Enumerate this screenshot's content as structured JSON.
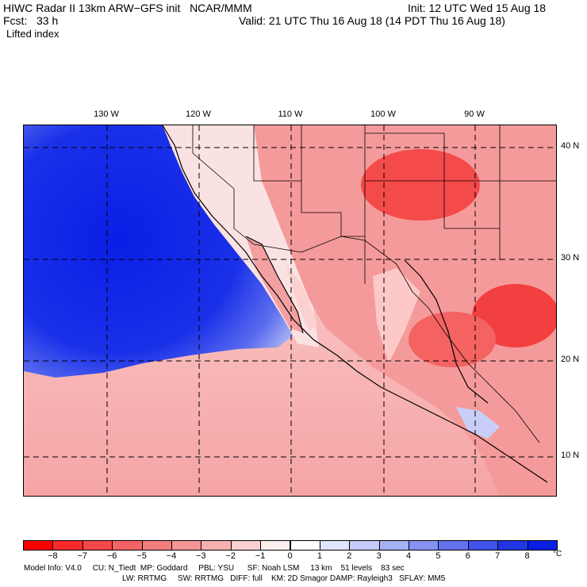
{
  "header": {
    "left_line1": "HIWC Radar II 13km ARW−GFS init   NCAR/MMM",
    "left_line2": "Fcst:   33 h",
    "field": "Lifted index",
    "init": "Init: 12 UTC Wed 15 Aug 18",
    "valid": "Valid: 21 UTC Thu 16 Aug 18 (14 PDT Thu 16 Aug 18)"
  },
  "map": {
    "lon_labels": [
      "130 W",
      "120 W",
      "110 W",
      "100 W",
      "90 W"
    ],
    "lat_labels": [
      "40 N",
      "30 N",
      "20 N",
      "10 N"
    ],
    "ocean_color": "#0a1ee6",
    "land_color": "#f08888"
  },
  "colorbar": {
    "labels": [
      "−8",
      "−7",
      "−6",
      "−5",
      "−4",
      "−3",
      "−2",
      "−1",
      "0",
      "1",
      "2",
      "3",
      "4",
      "5",
      "6",
      "7",
      "8"
    ],
    "unit": "°C",
    "colors": [
      "#ff0000",
      "#fc2a2a",
      "#f94848",
      "#f56464",
      "#f27e7e",
      "#f49696",
      "#f7b0b0",
      "#fad0d0",
      "#fff0f0",
      "#ffffff",
      "#e0e4fc",
      "#c4cbf8",
      "#a6b0f4",
      "#8592f0",
      "#6372ec",
      "#3f52ea",
      "#2036e6",
      "#0a1ee6"
    ]
  },
  "footer": {
    "line1": "Model Info: V4.0     CU: N_Tiedt  MP: Goddard     PBL: YSU      SF: Noah LSM     13 km    51 levels    83 sec",
    "line2": "LW: RRTMG     SW: RRTMG   DIFF: full    KM: 2D Smagor DAMP: Rayleigh3   SFLAY: MM5"
  }
}
